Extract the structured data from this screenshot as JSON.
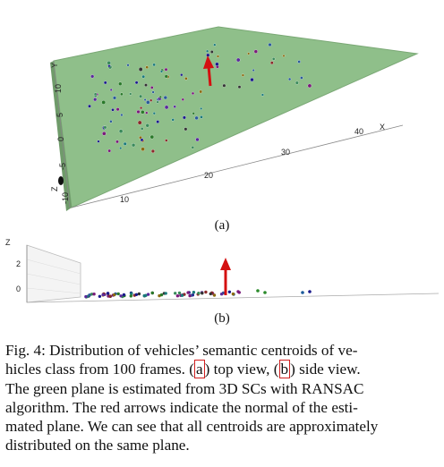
{
  "figure_a": {
    "label": "(a)",
    "x_ticks": [
      "10",
      "20",
      "30",
      "40"
    ],
    "x_axis_label": "X",
    "y_ticks": [
      "10",
      "5",
      "0",
      "-5",
      "-10"
    ],
    "y_axis_label": "Y",
    "z_axis_label": "Z",
    "plane_color": "#8fbf8a",
    "arrow_color": "#d41010"
  },
  "figure_b": {
    "label": "(b)",
    "z_ticks": [
      "2",
      "0"
    ],
    "z_axis_label": "Z",
    "arrow_color": "#d41010"
  },
  "caption": {
    "line1_pre": "Fig. 4: Distribution of vehicles’ semantic centroids of ve-",
    "line2_pre": "hicles class from 100 frames. (",
    "ref_a": "a",
    "line2_mid": ") top view, (",
    "ref_b": "b",
    "line2_post": ") side view.",
    "line3": "The green plane is estimated from 3D SCs with RANSAC",
    "line4": "algorithm. The red arrows indicate the normal of the esti-",
    "line5": "mated plane. We can see that all centroids are approximately",
    "line6": "distributed on the same plane."
  }
}
